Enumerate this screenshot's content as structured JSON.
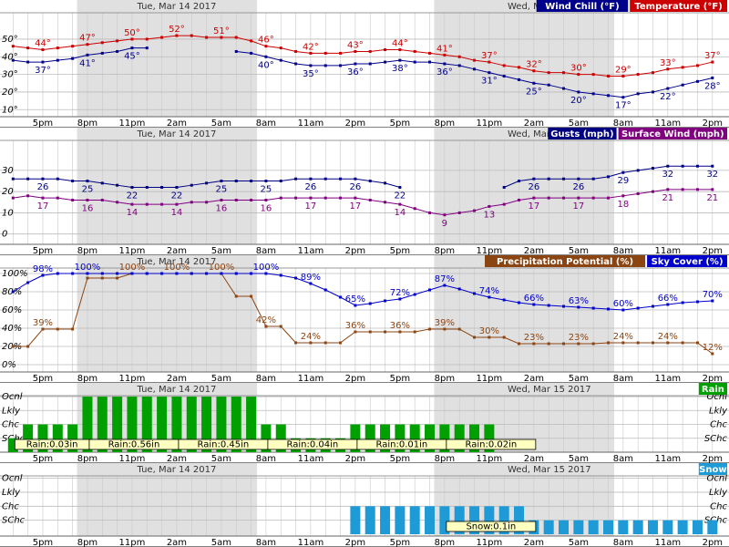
{
  "time_axis": {
    "categories": [
      null,
      null,
      "5pm",
      null,
      null,
      "8pm",
      null,
      null,
      "11pm",
      null,
      null,
      "2am",
      null,
      null,
      "5am",
      null,
      null,
      "8am",
      null,
      null,
      "11am",
      null,
      null,
      "2pm",
      null,
      null,
      "5pm",
      null,
      null,
      "8pm",
      null,
      null,
      "11pm",
      null,
      null,
      "2am",
      null,
      null,
      "5am",
      null,
      null,
      "8am",
      null,
      null,
      "11am",
      null,
      null,
      "2pm"
    ],
    "dates": [
      "Tue, Mar 14 2017",
      "Wed, Mar 15 2017"
    ]
  },
  "chart_data": [
    {
      "type": "line",
      "ylim": [
        6,
        66
      ],
      "yticks": [
        {
          "value": 10,
          "label": "10°"
        },
        {
          "value": 20,
          "label": "20°"
        },
        {
          "value": 30,
          "label": "30°"
        },
        {
          "value": 40,
          "label": "40°"
        },
        {
          "value": 50,
          "label": "50°"
        }
      ],
      "grid": true,
      "series": [
        {
          "name": "Wind Chill (°F)",
          "color": "#00008b",
          "values": [
            38,
            37,
            37,
            38,
            39,
            41,
            42,
            43,
            45,
            45,
            null,
            null,
            null,
            null,
            null,
            43,
            42,
            40,
            38,
            36,
            35,
            35,
            35,
            36,
            36,
            37,
            38,
            37,
            37,
            36,
            35,
            33,
            31,
            29,
            27,
            25,
            24,
            22,
            20,
            19,
            18,
            17,
            19,
            20,
            22,
            24,
            26,
            28
          ],
          "value_labels": [
            null,
            null,
            "37°",
            null,
            null,
            "41°",
            null,
            null,
            "45°",
            null,
            null,
            null,
            null,
            null,
            null,
            null,
            null,
            "40°",
            null,
            null,
            "35°",
            null,
            null,
            "36°",
            null,
            null,
            "38°",
            null,
            null,
            "36°",
            null,
            null,
            "31°",
            null,
            null,
            "25°",
            null,
            null,
            "20°",
            null,
            null,
            "17°",
            null,
            null,
            "22°",
            null,
            null,
            "28°"
          ]
        },
        {
          "name": "Temperature (°F)",
          "color": "#cc0000",
          "values": [
            46,
            45,
            44,
            45,
            46,
            47,
            48,
            49,
            50,
            50,
            51,
            52,
            52,
            51,
            51,
            51,
            49,
            46,
            45,
            43,
            42,
            42,
            42,
            43,
            43,
            44,
            44,
            43,
            42,
            41,
            40,
            38,
            37,
            35,
            34,
            32,
            31,
            31,
            30,
            30,
            29,
            29,
            30,
            31,
            33,
            34,
            35,
            37
          ],
          "value_labels": [
            null,
            null,
            "44°",
            null,
            null,
            "47°",
            null,
            null,
            "50°",
            null,
            null,
            "52°",
            null,
            null,
            "51°",
            null,
            null,
            "46°",
            null,
            null,
            "42°",
            null,
            null,
            "43°",
            null,
            null,
            "44°",
            null,
            null,
            "41°",
            null,
            null,
            "37°",
            null,
            null,
            "32°",
            null,
            null,
            "30°",
            null,
            null,
            "29°",
            null,
            null,
            "33°",
            null,
            null,
            "37°"
          ]
        }
      ]
    },
    {
      "type": "line",
      "ylim": [
        -4,
        45
      ],
      "yticks": [
        0,
        10,
        20,
        30
      ],
      "grid": true,
      "series": [
        {
          "name": "Gusts (mph)",
          "color": "#000080",
          "values": [
            26,
            26,
            26,
            26,
            25,
            25,
            24,
            23,
            22,
            22,
            22,
            22,
            23,
            24,
            25,
            25,
            25,
            25,
            25,
            26,
            26,
            26,
            26,
            26,
            25,
            24,
            22,
            null,
            null,
            null,
            null,
            null,
            null,
            22,
            25,
            26,
            26,
            26,
            26,
            26,
            27,
            29,
            30,
            31,
            32,
            32,
            32,
            32
          ]
        },
        {
          "name": "Surface Wind (mph)",
          "color": "#800080",
          "values": [
            17,
            18,
            17,
            17,
            16,
            16,
            16,
            15,
            14,
            14,
            14,
            14,
            15,
            15,
            16,
            16,
            16,
            16,
            17,
            17,
            17,
            17,
            17,
            17,
            16,
            15,
            14,
            12,
            10,
            9,
            10,
            11,
            13,
            14,
            16,
            17,
            17,
            17,
            17,
            17,
            17,
            18,
            19,
            20,
            21,
            21,
            21,
            21
          ]
        }
      ]
    },
    {
      "type": "line",
      "ylim": [
        -8,
        108
      ],
      "yticks": [
        {
          "value": 0,
          "label": "0%"
        },
        {
          "value": 20,
          "label": "20%"
        },
        {
          "value": 40,
          "label": "40%"
        },
        {
          "value": 60,
          "label": "60%"
        },
        {
          "value": 80,
          "label": "80%"
        },
        {
          "value": 100,
          "label": "100%"
        }
      ],
      "grid": true,
      "series": [
        {
          "name": "Precipitation Potential (%)",
          "color": "#8b4513",
          "values": [
            20,
            20,
            39,
            39,
            39,
            95,
            95,
            95,
            100,
            100,
            100,
            100,
            100,
            100,
            100,
            75,
            75,
            42,
            42,
            24,
            24,
            24,
            24,
            36,
            36,
            36,
            36,
            36,
            39,
            39,
            39,
            30,
            30,
            30,
            23,
            23,
            23,
            23,
            23,
            23,
            24,
            24,
            24,
            24,
            24,
            24,
            24,
            12
          ],
          "value_labels": [
            null,
            null,
            "39%",
            null,
            null,
            null,
            null,
            null,
            "100%",
            null,
            null,
            "100%",
            null,
            null,
            "100%",
            null,
            null,
            "42%",
            null,
            null,
            "24%",
            null,
            null,
            "36%",
            null,
            null,
            "36%",
            null,
            null,
            "39%",
            null,
            null,
            "30%",
            null,
            null,
            "23%",
            null,
            null,
            "23%",
            null,
            null,
            "24%",
            null,
            null,
            "24%",
            null,
            null,
            "12%"
          ]
        },
        {
          "name": "Sky Cover (%)",
          "color": "#0000cc",
          "values": [
            80,
            90,
            98,
            100,
            100,
            100,
            100,
            100,
            100,
            100,
            100,
            100,
            100,
            100,
            100,
            100,
            100,
            100,
            98,
            95,
            89,
            82,
            74,
            65,
            67,
            70,
            72,
            77,
            82,
            87,
            83,
            78,
            74,
            71,
            68,
            66,
            65,
            64,
            63,
            62,
            61,
            60,
            62,
            64,
            66,
            68,
            69,
            70
          ],
          "value_labels": [
            null,
            null,
            "98%",
            null,
            null,
            "100%",
            null,
            null,
            null,
            null,
            null,
            null,
            null,
            null,
            null,
            null,
            null,
            "100%",
            null,
            null,
            "89%",
            null,
            null,
            "65%",
            null,
            null,
            "72%",
            null,
            null,
            "87%",
            null,
            null,
            "74%",
            null,
            null,
            "66%",
            null,
            null,
            "63%",
            null,
            null,
            "60%",
            null,
            null,
            "66%",
            null,
            null,
            "70%"
          ]
        }
      ]
    },
    {
      "type": "bar",
      "ylim": [
        0,
        4.2
      ],
      "yticks": [
        {
          "value": 1,
          "label": "SChc"
        },
        {
          "value": 2,
          "label": "Chc"
        },
        {
          "value": 3,
          "label": "Lkly"
        },
        {
          "value": 4,
          "label": "Ocnl"
        }
      ],
      "grid": true,
      "series": [
        {
          "name": "Rain",
          "color": "#00a000",
          "values": [
            1,
            2,
            2,
            2,
            2,
            4,
            4,
            4,
            4,
            4,
            4,
            4,
            4,
            4,
            4,
            4,
            4,
            2,
            2,
            1,
            1,
            1,
            1,
            2,
            2,
            2,
            2,
            2,
            2,
            2,
            2,
            2,
            2,
            null,
            null,
            null,
            null,
            null,
            null,
            null,
            null,
            null,
            null,
            null,
            null,
            null,
            null,
            null
          ]
        }
      ],
      "amounts": [
        {
          "value": 0.03,
          "label": "Rain:0.03in"
        },
        {
          "value": 0.56,
          "label": "Rain:0.56in"
        },
        {
          "value": 0.45,
          "label": "Rain:0.45in"
        },
        {
          "value": 0.04,
          "label": "Rain:0.04in"
        },
        {
          "value": 0.01,
          "label": "Rain:0.01in"
        },
        {
          "value": 0.02,
          "label": "Rain:0.02in"
        }
      ]
    },
    {
      "type": "bar",
      "ylim": [
        0,
        4.3
      ],
      "yticks": [
        {
          "value": 1,
          "label": "SChc"
        },
        {
          "value": 2,
          "label": "Chc"
        },
        {
          "value": 3,
          "label": "Lkly"
        },
        {
          "value": 4,
          "label": "Ocnl"
        }
      ],
      "grid": true,
      "series": [
        {
          "name": "Snow",
          "color": "#1e9bd7",
          "values": [
            null,
            null,
            null,
            null,
            null,
            null,
            null,
            null,
            null,
            null,
            null,
            null,
            null,
            null,
            null,
            null,
            null,
            null,
            null,
            null,
            null,
            null,
            null,
            2,
            2,
            2,
            2,
            2,
            2,
            2,
            2,
            2,
            2,
            2,
            2,
            1,
            1,
            1,
            1,
            1,
            1,
            1,
            1,
            1,
            1,
            1,
            1,
            1
          ]
        }
      ],
      "amounts": [
        {
          "value": 0.1,
          "label": "Snow:0.1in"
        }
      ]
    }
  ]
}
